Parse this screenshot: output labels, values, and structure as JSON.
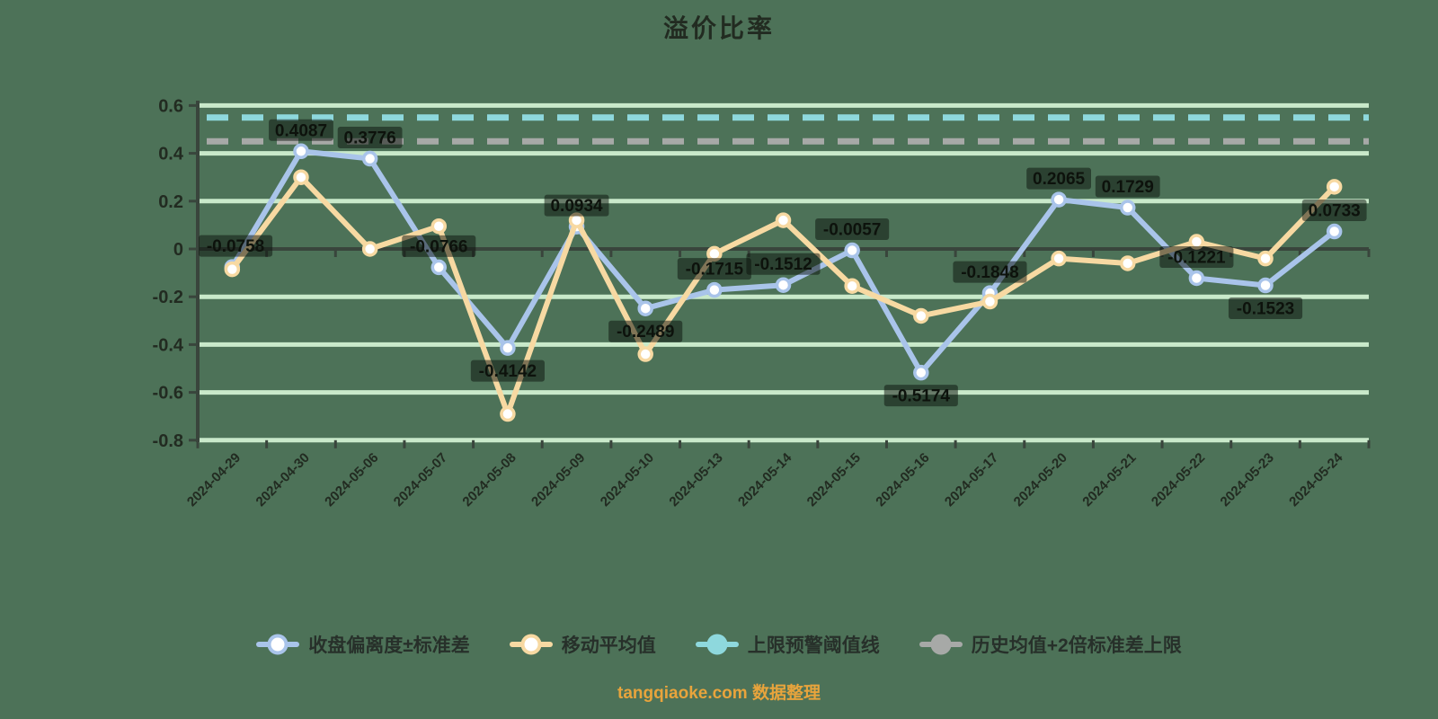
{
  "page": {
    "background": "#4d7258"
  },
  "chart_data": {
    "type": "line",
    "title": "溢价比率",
    "categories": [
      "2024-04-29",
      "2024-04-30",
      "2024-05-06",
      "2024-05-07",
      "2024-05-08",
      "2024-05-09",
      "2024-05-10",
      "2024-05-13",
      "2024-05-14",
      "2024-05-15",
      "2024-05-16",
      "2024-05-17",
      "2024-05-20",
      "2024-05-21",
      "2024-05-22",
      "2024-05-23",
      "2024-05-24"
    ],
    "ylim": [
      -0.8,
      0.6
    ],
    "ytick_labels": [
      "0.6",
      "0.4",
      "0.2",
      "0",
      "-0.2",
      "-0.4",
      "-0.6",
      "-0.8"
    ],
    "ytick_values": [
      0.6,
      0.4,
      0.2,
      0,
      -0.2,
      -0.4,
      -0.6,
      -0.8
    ],
    "grid": true,
    "legend_position": "bottom",
    "series": [
      {
        "name": "收盘偏离度±标准差",
        "color": "#a9c4ea",
        "marker": "hollow",
        "values": [
          -0.0758,
          0.4087,
          0.3776,
          -0.0766,
          -0.4142,
          0.0934,
          -0.2489,
          -0.1715,
          -0.1512,
          -0.0057,
          -0.5174,
          -0.1848,
          0.2065,
          0.1729,
          -0.1221,
          -0.1523,
          0.0733
        ],
        "labels": [
          "-0.0758",
          "0.4087",
          "0.3776",
          "-0.0766",
          "-0.4142",
          "0.0934",
          "-0.2489",
          "-0.1715",
          "-0.1512",
          "-0.0057",
          "-0.5174",
          "-0.1848",
          "0.2065",
          "0.1729",
          "-0.1221",
          "-0.1523",
          "0.0733"
        ]
      },
      {
        "name": "移动平均值",
        "color": "#f7d9a2",
        "marker": "hollow",
        "values": [
          -0.085,
          0.3,
          0.0,
          0.095,
          -0.69,
          0.12,
          -0.44,
          -0.02,
          0.12,
          -0.155,
          -0.28,
          -0.22,
          -0.04,
          -0.06,
          0.03,
          -0.04,
          0.26
        ],
        "labels": []
      }
    ],
    "thresholds": [
      {
        "name": "上限预警阈值线",
        "color": "#8ed8dd",
        "value": 0.55,
        "style": "dashed"
      },
      {
        "name": "历史均值+2倍标准差上限",
        "color": "#a7a9a7",
        "value": 0.45,
        "style": "dashed"
      }
    ]
  },
  "colors": {
    "background": "#4d7258",
    "gridline": "#c9e9ca",
    "axis": "#39453c",
    "axis_text": "#222b21",
    "data_label_text": "#0d120c",
    "data_label_bg": "rgba(10,16,9,0.5)",
    "marker_fill": "#ffffff"
  },
  "caption": {
    "text": "tangqiaoke.com 数据整理",
    "color": "#e8a43c"
  }
}
